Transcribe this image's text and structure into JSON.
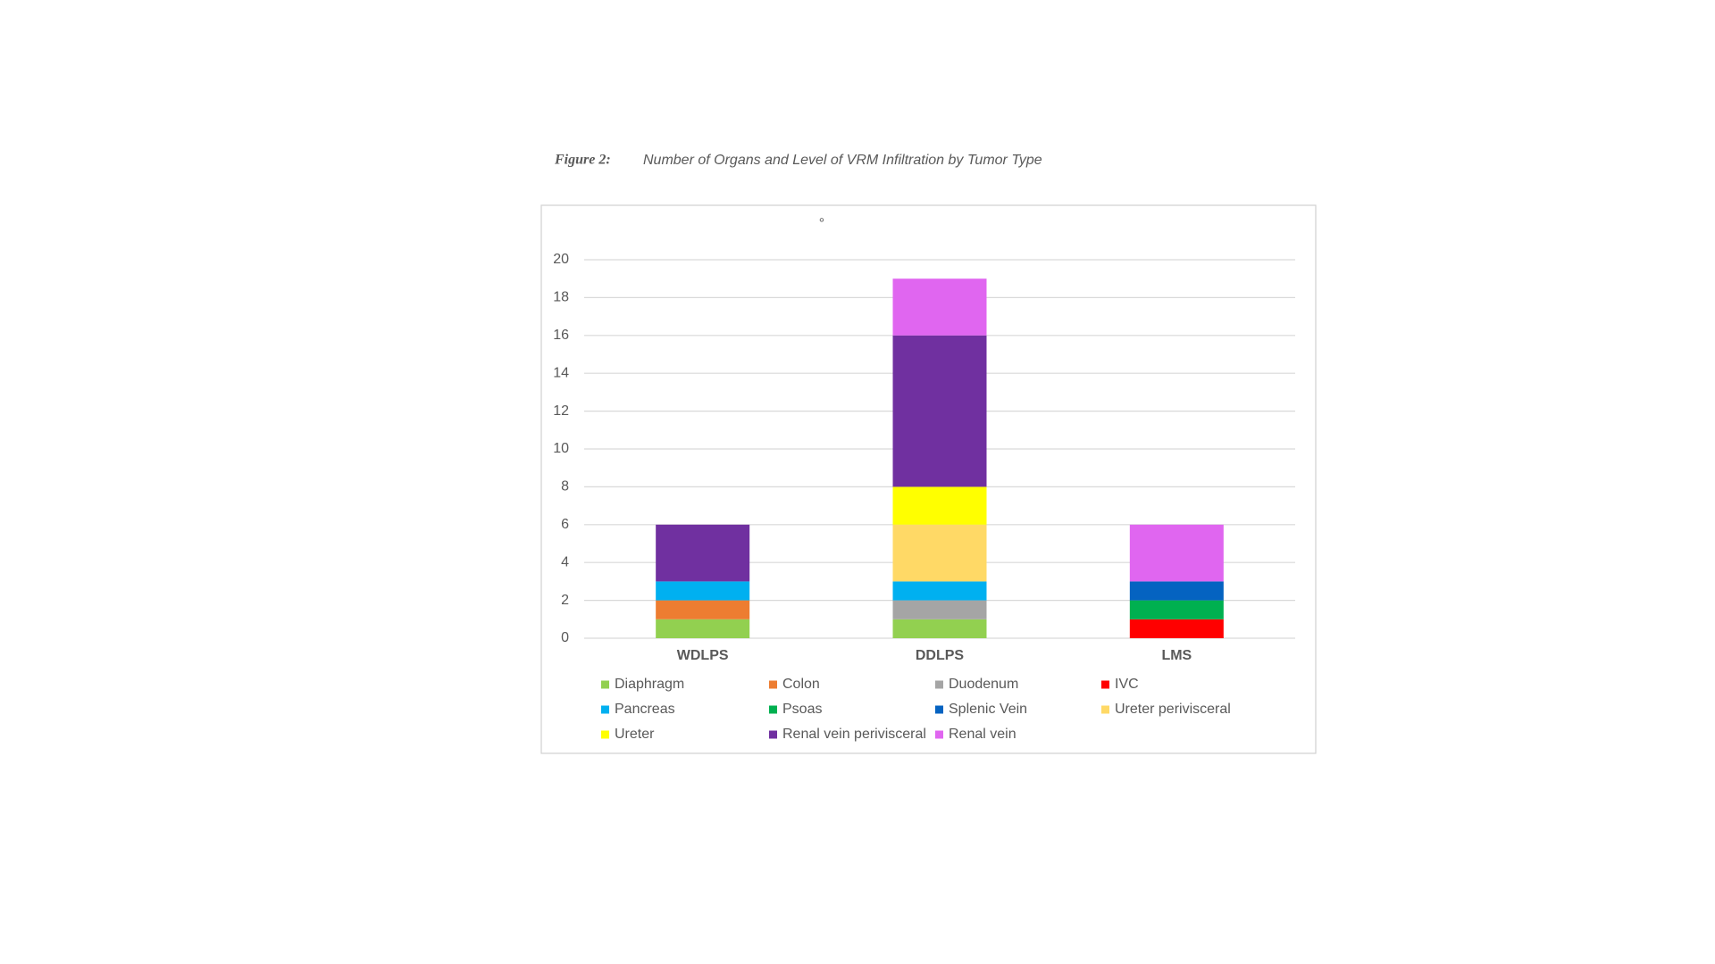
{
  "chart_data": {
    "type": "stacked_bar",
    "title_label": "Figure 2:",
    "title": "Number of Organs and Level of VRM Infiltration by Tumor Type",
    "annotation": "°",
    "categories": [
      "WDLPS",
      "DDLPS",
      "LMS"
    ],
    "series": [
      {
        "name": "Diaphragm",
        "color": "#92d050",
        "values": [
          1,
          1,
          0
        ]
      },
      {
        "name": "Colon",
        "color": "#ed7d31",
        "values": [
          1,
          0,
          0
        ]
      },
      {
        "name": "Duodenum",
        "color": "#a5a5a5",
        "values": [
          0,
          1,
          0
        ]
      },
      {
        "name": "IVC",
        "color": "#ff0000",
        "values": [
          0,
          0,
          1
        ]
      },
      {
        "name": "Pancreas",
        "color": "#00b0f0",
        "values": [
          1,
          1,
          0
        ]
      },
      {
        "name": "Psoas",
        "color": "#00b050",
        "values": [
          0,
          0,
          1
        ]
      },
      {
        "name": "Splenic Vein",
        "color": "#0563c1",
        "values": [
          0,
          0,
          1
        ]
      },
      {
        "name": "Ureter perivisceral",
        "color": "#ffd966",
        "values": [
          0,
          3,
          0
        ]
      },
      {
        "name": "Ureter",
        "color": "#ffff00",
        "values": [
          0,
          2,
          0
        ]
      },
      {
        "name": "Renal vein perivisceral",
        "color": "#7030a0",
        "values": [
          3,
          8,
          0
        ]
      },
      {
        "name": "Renal vein",
        "color": "#e066f0",
        "values": [
          0,
          3,
          3
        ]
      }
    ],
    "ylim": [
      0,
      20
    ],
    "yticks": [
      0,
      2,
      4,
      6,
      8,
      10,
      12,
      14,
      16,
      18,
      20
    ],
    "grid": true,
    "legend": "bottom"
  }
}
